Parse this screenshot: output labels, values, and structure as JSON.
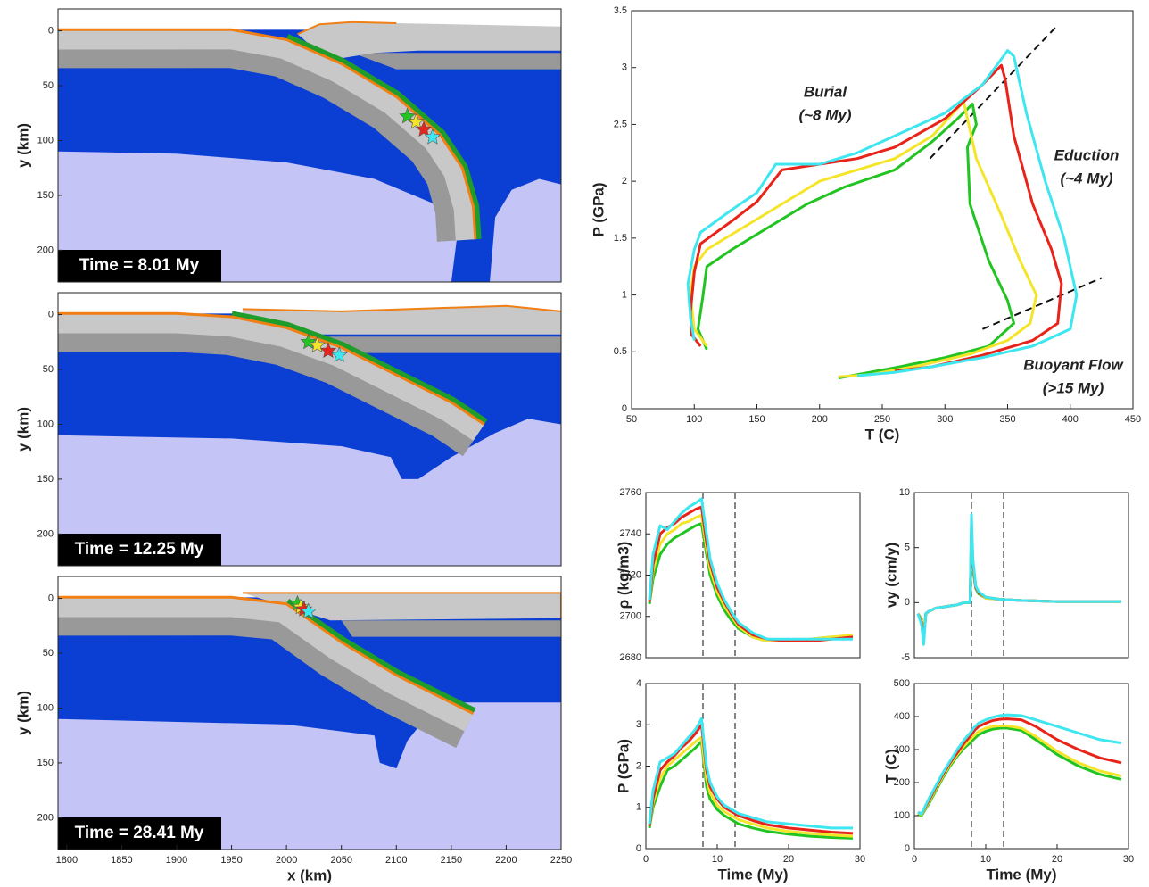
{
  "chart_data": [
    {
      "type": "section",
      "annotation": "Time = 8.01 My",
      "ylabel": "y (km)",
      "xlim": [
        1792,
        2250
      ],
      "ylim": [
        -20,
        229
      ],
      "y_inverted": true,
      "yticks": [
        0,
        50,
        100,
        150,
        200
      ],
      "markers": [
        {
          "x": 2110,
          "y": 78,
          "color": "#22c422"
        },
        {
          "x": 2118,
          "y": 83,
          "color": "#f5e52a"
        },
        {
          "x": 2125,
          "y": 90,
          "color": "#e8231a"
        },
        {
          "x": 2133,
          "y": 97,
          "color": "#3ee6f0"
        }
      ]
    },
    {
      "type": "section",
      "annotation": "Time = 12.25 My",
      "ylabel": "y (km)",
      "xlim": [
        1792,
        2250
      ],
      "ylim": [
        -20,
        229
      ],
      "y_inverted": true,
      "yticks": [
        0,
        50,
        100,
        150,
        200
      ],
      "markers": [
        {
          "x": 2020,
          "y": 25,
          "color": "#22c422"
        },
        {
          "x": 2028,
          "y": 28,
          "color": "#f5e52a"
        },
        {
          "x": 2038,
          "y": 33,
          "color": "#e8231a"
        },
        {
          "x": 2048,
          "y": 37,
          "color": "#3ee6f0"
        }
      ]
    },
    {
      "type": "section",
      "annotation": "Time = 28.41 My",
      "ylabel": "y (km)",
      "xlabel": "x (km)",
      "xlim": [
        1792,
        2250
      ],
      "ylim": [
        -20,
        229
      ],
      "y_inverted": true,
      "yticks": [
        0,
        50,
        100,
        150,
        200
      ],
      "xticks": [
        1800,
        1850,
        1900,
        1950,
        2000,
        2050,
        2100,
        2150,
        2200,
        2250
      ],
      "markers": [
        {
          "x": 2010,
          "y": 5,
          "color": "#22c422"
        },
        {
          "x": 2013,
          "y": 8,
          "color": "#f5e52a"
        },
        {
          "x": 2016,
          "y": 10,
          "color": "#e8231a"
        },
        {
          "x": 2020,
          "y": 12,
          "color": "#3ee6f0"
        }
      ]
    },
    {
      "type": "line",
      "xlabel": "T (C)",
      "ylabel": "P (GPa)",
      "xlim": [
        50,
        450
      ],
      "ylim": [
        0,
        3.5
      ],
      "xticks": [
        50,
        100,
        150,
        200,
        250,
        300,
        350,
        400,
        450
      ],
      "yticks": [
        0,
        0.5,
        1,
        1.5,
        2,
        2.5,
        3,
        3.5
      ],
      "annotations": [
        "Burial",
        "(~8 My)",
        "Eduction",
        "(~4 My)",
        "Buoyant Flow",
        "(>15 My)"
      ],
      "guides": [
        [
          [
            288,
            2.2
          ],
          [
            388,
            3.35
          ]
        ],
        [
          [
            330,
            0.7
          ],
          [
            425,
            1.15
          ]
        ]
      ],
      "series": [
        {
          "color": "#22c422",
          "x": [
            110,
            103,
            107,
            110,
            130,
            160,
            190,
            220,
            260,
            290,
            310,
            322,
            325,
            318,
            320,
            335,
            350,
            355,
            335,
            300,
            260,
            215
          ],
          "values": [
            0.52,
            0.7,
            1.0,
            1.25,
            1.4,
            1.6,
            1.8,
            1.95,
            2.1,
            2.35,
            2.55,
            2.68,
            2.5,
            2.3,
            1.8,
            1.3,
            0.95,
            0.75,
            0.55,
            0.45,
            0.36,
            0.27
          ]
        },
        {
          "color": "#f5e52a",
          "x": [
            110,
            100,
            97,
            100,
            110,
            140,
            170,
            200,
            230,
            260,
            290,
            315,
            318,
            325,
            345,
            360,
            373,
            368,
            350,
            320,
            280,
            240,
            215
          ],
          "values": [
            0.55,
            0.7,
            1.0,
            1.25,
            1.4,
            1.6,
            1.8,
            2.0,
            2.1,
            2.2,
            2.4,
            2.7,
            2.55,
            2.2,
            1.7,
            1.3,
            1.0,
            0.75,
            0.6,
            0.48,
            0.38,
            0.3,
            0.28
          ]
        },
        {
          "color": "#e8231a",
          "x": [
            105,
            98,
            97,
            100,
            105,
            130,
            150,
            170,
            200,
            230,
            260,
            300,
            330,
            345,
            348,
            355,
            370,
            385,
            393,
            390,
            370,
            330,
            290,
            260
          ],
          "values": [
            0.55,
            0.65,
            0.85,
            1.2,
            1.45,
            1.65,
            1.82,
            2.1,
            2.15,
            2.2,
            2.3,
            2.55,
            2.85,
            3.02,
            2.9,
            2.4,
            1.8,
            1.4,
            1.1,
            0.75,
            0.6,
            0.47,
            0.37,
            0.33
          ]
        },
        {
          "color": "#3ee6f0",
          "x": [
            100,
            97,
            95,
            100,
            105,
            130,
            150,
            165,
            185,
            200,
            230,
            260,
            300,
            330,
            350,
            355,
            365,
            380,
            395,
            405,
            400,
            370,
            330,
            290,
            260,
            230
          ],
          "values": [
            0.6,
            0.8,
            1.1,
            1.4,
            1.55,
            1.75,
            1.9,
            2.15,
            2.15,
            2.15,
            2.25,
            2.4,
            2.6,
            2.85,
            3.15,
            3.1,
            2.6,
            2.0,
            1.5,
            1.0,
            0.7,
            0.55,
            0.45,
            0.37,
            0.32,
            0.29
          ]
        }
      ]
    },
    {
      "type": "line",
      "ylabel": "ρ (kg/m3)",
      "xlim": [
        0,
        30
      ],
      "ylim": [
        2680,
        2760
      ],
      "yticks": [
        2680,
        2700,
        2720,
        2740,
        2760
      ],
      "vlines": [
        8,
        12.5
      ],
      "x": [
        0.5,
        1,
        2,
        3,
        4,
        5,
        6,
        7,
        7.8,
        8.5,
        9,
        10,
        11,
        12,
        13,
        15,
        17,
        20,
        23,
        26,
        29
      ],
      "series": [
        {
          "color": "#22c422",
          "values": [
            2706,
            2718,
            2730,
            2735,
            2738,
            2740,
            2742,
            2744,
            2745,
            2730,
            2720,
            2710,
            2703,
            2698,
            2694,
            2690,
            2688,
            2688,
            2689,
            2690,
            2690
          ]
        },
        {
          "color": "#f5e52a",
          "values": [
            2707,
            2722,
            2735,
            2740,
            2742,
            2745,
            2746,
            2748,
            2749,
            2733,
            2723,
            2712,
            2705,
            2700,
            2695,
            2690,
            2688,
            2688,
            2689,
            2690,
            2691
          ]
        },
        {
          "color": "#e8231a",
          "values": [
            2707,
            2725,
            2740,
            2743,
            2745,
            2748,
            2750,
            2752,
            2753,
            2736,
            2726,
            2714,
            2707,
            2701,
            2696,
            2691,
            2689,
            2688,
            2688,
            2689,
            2690
          ]
        },
        {
          "color": "#3ee6f0",
          "values": [
            2708,
            2730,
            2744,
            2742,
            2746,
            2750,
            2753,
            2755,
            2757,
            2740,
            2728,
            2716,
            2708,
            2702,
            2697,
            2692,
            2689,
            2689,
            2689,
            2689,
            2689
          ]
        }
      ]
    },
    {
      "type": "line",
      "ylabel": "vy (cm/y)",
      "xlim": [
        0,
        30
      ],
      "ylim": [
        -5,
        10
      ],
      "yticks": [
        -5,
        0,
        5,
        10
      ],
      "vlines": [
        8,
        12.5
      ],
      "x": [
        0.5,
        1,
        1.3,
        1.6,
        2,
        3,
        4,
        5,
        6,
        7,
        7.8,
        8,
        8.2,
        8.6,
        9,
        10,
        12,
        15,
        20,
        25,
        29
      ],
      "series": [
        {
          "color": "#22c422",
          "values": [
            -1,
            -1.5,
            -3,
            -1,
            -0.8,
            -0.5,
            -0.4,
            -0.3,
            -0.2,
            0,
            0,
            6,
            3,
            1.3,
            0.8,
            0.4,
            0.3,
            0.2,
            0.1,
            0.1,
            0.1
          ]
        },
        {
          "color": "#f5e52a",
          "values": [
            -1,
            -1.6,
            -3.2,
            -1,
            -0.8,
            -0.5,
            -0.4,
            -0.3,
            -0.2,
            0,
            0,
            6.5,
            3.3,
            1.4,
            0.9,
            0.4,
            0.3,
            0.2,
            0.1,
            0.1,
            0.1
          ]
        },
        {
          "color": "#e8231a",
          "values": [
            -1,
            -1.8,
            -3.5,
            -1,
            -0.8,
            -0.5,
            -0.4,
            -0.3,
            -0.2,
            0,
            0,
            7,
            3.6,
            1.4,
            0.9,
            0.5,
            0.3,
            0.2,
            0.1,
            0.1,
            0.1
          ]
        },
        {
          "color": "#3ee6f0",
          "values": [
            -1,
            -2,
            -3.8,
            -1,
            -0.8,
            -0.5,
            -0.4,
            -0.3,
            -0.2,
            0,
            0,
            8,
            4,
            1.5,
            1,
            0.5,
            0.3,
            0.2,
            0.1,
            0.1,
            0.1
          ]
        }
      ]
    },
    {
      "type": "line",
      "ylabel": "P (GPa)",
      "xlabel": "Time (My)",
      "xlim": [
        0,
        30
      ],
      "ylim": [
        0,
        4
      ],
      "xticks": [
        0,
        10,
        20,
        30
      ],
      "yticks": [
        0,
        1,
        2,
        3,
        4
      ],
      "vlines": [
        8,
        12.5
      ],
      "x": [
        0.5,
        1,
        2,
        3,
        4,
        5,
        6,
        7,
        7.8,
        8.5,
        9,
        10,
        11,
        12,
        13,
        15,
        17,
        20,
        23,
        26,
        29
      ],
      "series": [
        {
          "color": "#22c422",
          "values": [
            0.5,
            1.0,
            1.5,
            1.9,
            2.0,
            2.15,
            2.3,
            2.45,
            2.6,
            1.5,
            1.2,
            0.95,
            0.8,
            0.7,
            0.6,
            0.5,
            0.42,
            0.35,
            0.3,
            0.27,
            0.25
          ]
        },
        {
          "color": "#f5e52a",
          "values": [
            0.55,
            1.1,
            1.7,
            2.0,
            2.15,
            2.3,
            2.45,
            2.6,
            2.7,
            1.7,
            1.35,
            1.05,
            0.9,
            0.8,
            0.7,
            0.6,
            0.5,
            0.42,
            0.37,
            0.33,
            0.3
          ]
        },
        {
          "color": "#e8231a",
          "values": [
            0.55,
            1.2,
            1.9,
            2.1,
            2.25,
            2.45,
            2.6,
            2.8,
            3.0,
            1.9,
            1.5,
            1.2,
            1.0,
            0.9,
            0.8,
            0.68,
            0.58,
            0.5,
            0.45,
            0.4,
            0.37
          ]
        },
        {
          "color": "#3ee6f0",
          "values": [
            0.6,
            1.4,
            2.1,
            2.2,
            2.3,
            2.5,
            2.7,
            2.9,
            3.15,
            2.0,
            1.6,
            1.25,
            1.05,
            0.95,
            0.85,
            0.75,
            0.65,
            0.6,
            0.55,
            0.5,
            0.5
          ]
        }
      ]
    },
    {
      "type": "line",
      "ylabel": "T (C)",
      "xlabel": "Time (My)",
      "xlim": [
        0,
        30
      ],
      "ylim": [
        0,
        500
      ],
      "xticks": [
        0,
        10,
        20,
        30
      ],
      "yticks": [
        0,
        100,
        200,
        300,
        400,
        500
      ],
      "vlines": [
        8,
        12.5
      ],
      "x": [
        0.5,
        1,
        2,
        3,
        4,
        5,
        6,
        7,
        7.8,
        8.5,
        9,
        10,
        11,
        12,
        13,
        15,
        17,
        20,
        23,
        26,
        29
      ],
      "series": [
        {
          "color": "#22c422",
          "values": [
            105,
            100,
            135,
            175,
            215,
            250,
            280,
            305,
            320,
            335,
            345,
            355,
            362,
            365,
            365,
            358,
            330,
            285,
            250,
            225,
            210
          ]
        },
        {
          "color": "#f5e52a",
          "values": [
            108,
            103,
            140,
            180,
            220,
            255,
            285,
            312,
            330,
            345,
            355,
            365,
            370,
            372,
            372,
            365,
            340,
            295,
            260,
            235,
            220
          ]
        },
        {
          "color": "#e8231a",
          "values": [
            110,
            105,
            145,
            185,
            225,
            260,
            290,
            320,
            340,
            360,
            370,
            380,
            388,
            392,
            393,
            390,
            370,
            330,
            300,
            275,
            260
          ]
        },
        {
          "color": "#3ee6f0",
          "values": [
            110,
            105,
            150,
            190,
            230,
            265,
            300,
            330,
            350,
            370,
            380,
            390,
            398,
            403,
            405,
            403,
            390,
            370,
            350,
            330,
            320
          ]
        }
      ]
    }
  ]
}
